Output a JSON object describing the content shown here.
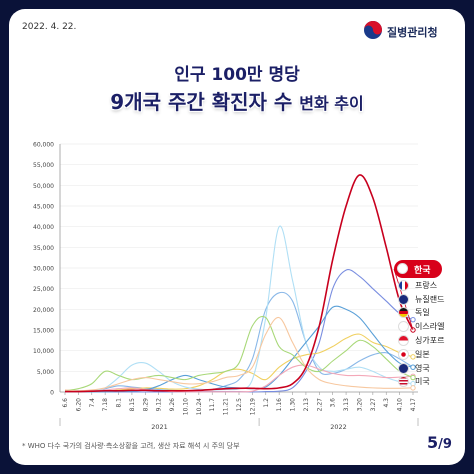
{
  "header": {
    "date": "2022. 4. 22.",
    "agency": "질병관리청"
  },
  "title": {
    "line1": "인구 100만 명당",
    "line2a": "9개국 주간 확진자 수",
    "line2b": "변화 추이"
  },
  "footnote": "* WHO 다수 국가의 검사량·측소상황을 고려, 생산 자료 해석 시 주의 당부",
  "page": {
    "current": "5",
    "total": "/9"
  },
  "chart_data": {
    "type": "line",
    "x": [
      "6.6",
      "6.20",
      "7.4",
      "7.18",
      "8.1",
      "8.15",
      "8.29",
      "9.12",
      "9.26",
      "10.10",
      "10.24",
      "11.7",
      "11.21",
      "12.5",
      "12.19",
      "1.2",
      "1.16",
      "1.30",
      "2.13",
      "2.27",
      "3.6",
      "3.13",
      "3.20",
      "3.27",
      "4.3",
      "4.10",
      "4.17"
    ],
    "year_labels": [
      "2021",
      "2022"
    ],
    "ylim": [
      0,
      60000
    ],
    "yticks": [
      "0",
      "5,000",
      "10,000",
      "15,000",
      "20,000",
      "25,000",
      "30,000",
      "35,000",
      "40,000",
      "45,000",
      "50,000",
      "55,000",
      "60,000"
    ],
    "series": [
      {
        "name": "한국",
        "color": "#c8001e",
        "values": [
          100,
          100,
          200,
          300,
          300,
          400,
          400,
          300,
          300,
          300,
          400,
          600,
          800,
          900,
          900,
          800,
          1000,
          2000,
          6000,
          16000,
          32000,
          45000,
          52500,
          47000,
          35000,
          22000,
          15000
        ]
      },
      {
        "name": "프랑스",
        "color": "#8ab8e8",
        "values": [
          400,
          300,
          300,
          800,
          1500,
          1200,
          900,
          600,
          400,
          300,
          400,
          600,
          1500,
          3000,
          8000,
          20000,
          24000,
          22000,
          12000,
          5000,
          4500,
          5500,
          7500,
          9000,
          9500,
          8000,
          6000
        ]
      },
      {
        "name": "뉴질랜드",
        "color": "#7a8ee0",
        "values": [
          0,
          0,
          0,
          0,
          0,
          0,
          0,
          0,
          0,
          0,
          100,
          100,
          100,
          100,
          0,
          100,
          200,
          1000,
          5000,
          12000,
          25000,
          29500,
          28000,
          25000,
          22000,
          19000,
          17500
        ]
      },
      {
        "name": "독일",
        "color": "#f0d060",
        "values": [
          200,
          100,
          100,
          200,
          500,
          800,
          1000,
          900,
          700,
          800,
          1500,
          3000,
          5000,
          5500,
          4500,
          3000,
          6000,
          8000,
          9000,
          9500,
          11000,
          13000,
          14000,
          12000,
          11000,
          9500,
          8500
        ]
      },
      {
        "name": "이스라엘",
        "color": "#b0dff5",
        "values": [
          100,
          100,
          200,
          1000,
          3500,
          6500,
          7000,
          5000,
          2500,
          1200,
          700,
          500,
          600,
          800,
          3000,
          18000,
          40000,
          27000,
          12000,
          6000,
          5000,
          5500,
          6000,
          5000,
          3500,
          2500,
          2000
        ]
      },
      {
        "name": "싱가포르",
        "color": "#5aa0d8",
        "values": [
          50,
          50,
          50,
          50,
          100,
          200,
          500,
          1500,
          3000,
          4000,
          3000,
          2000,
          1200,
          1000,
          800,
          1200,
          4000,
          8000,
          12000,
          16000,
          20500,
          20000,
          18000,
          14000,
          10000,
          7000,
          6000
        ]
      },
      {
        "name": "일본",
        "color": "#f4a8b8",
        "values": [
          100,
          100,
          200,
          500,
          800,
          1000,
          600,
          300,
          100,
          50,
          50,
          50,
          50,
          50,
          200,
          1500,
          4000,
          6000,
          6500,
          5500,
          4500,
          4000,
          4000,
          3800,
          3500,
          3600,
          3800
        ]
      },
      {
        "name": "영국",
        "color": "#a8d878",
        "values": [
          300,
          800,
          2000,
          5000,
          4000,
          3000,
          3500,
          4000,
          3500,
          3000,
          4000,
          4500,
          5000,
          7000,
          16000,
          18000,
          11000,
          9000,
          6000,
          5000,
          7500,
          10000,
          12500,
          11000,
          8000,
          5000,
          3500
        ]
      },
      {
        "name": "미국",
        "color": "#f7c8a0",
        "values": [
          500,
          300,
          500,
          1000,
          2000,
          3000,
          3500,
          3000,
          2500,
          2000,
          2000,
          2500,
          3500,
          4000,
          6000,
          14000,
          18000,
          12000,
          6000,
          3000,
          2000,
          1500,
          1200,
          1000,
          900,
          900,
          1000
        ]
      }
    ]
  }
}
